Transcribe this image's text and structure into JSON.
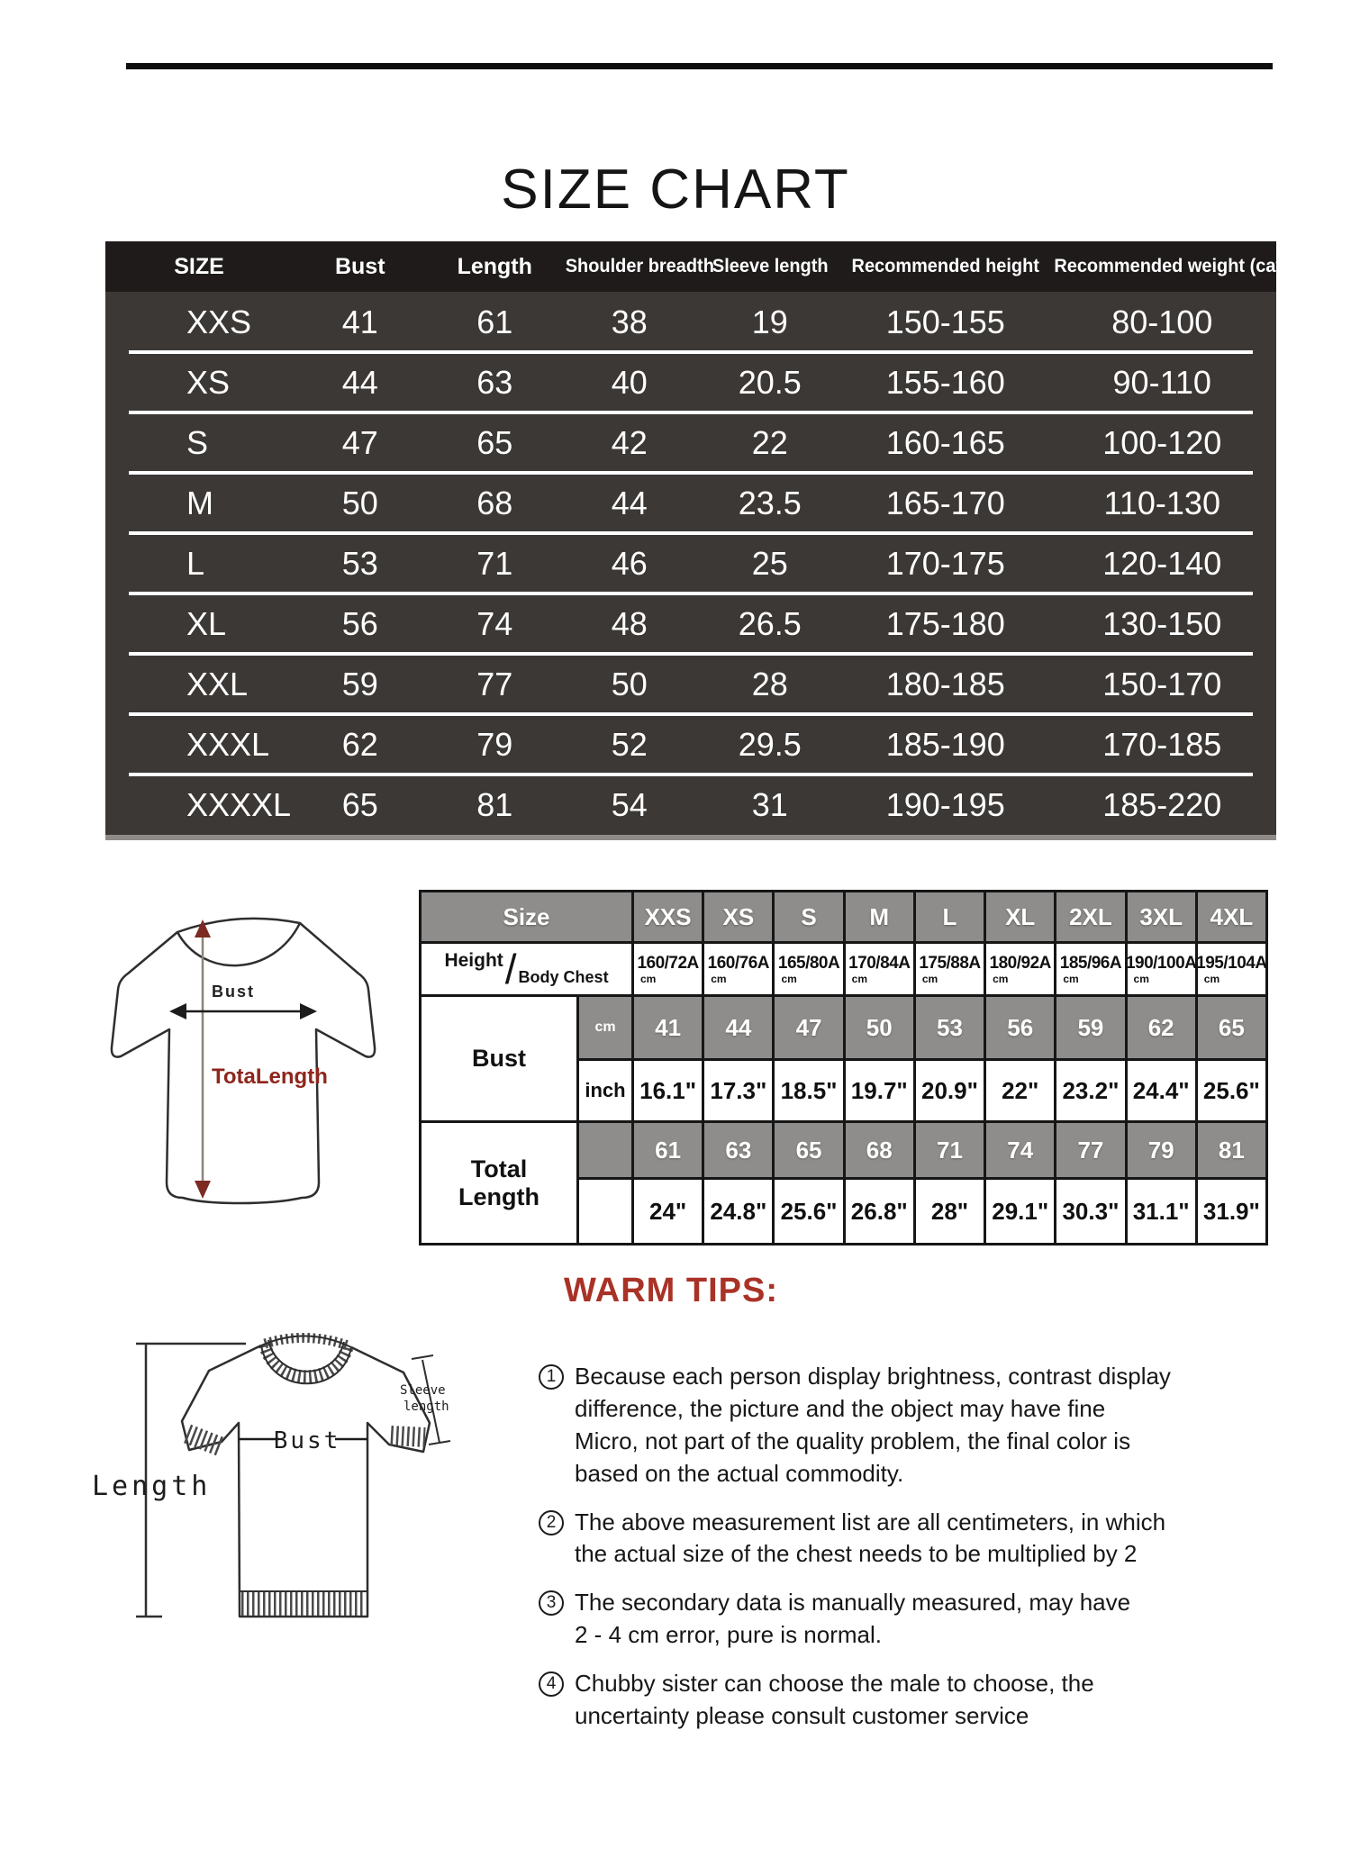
{
  "page": {
    "title": "SIZE CHART"
  },
  "colors": {
    "accent_red": "#a93227",
    "diagram_red": "#8e261d",
    "dark_table_bg": "#3c3835",
    "dark_table_header_bg": "#1e1b1a",
    "gray_cell": "#8e8d8b"
  },
  "main_table": {
    "headers": [
      "SIZE",
      "Bust",
      "Length",
      "Shoulder breadth",
      "Sleeve length",
      "Recommended height",
      "Recommended weight (catty)"
    ],
    "rows": [
      [
        "XXS",
        "41",
        "61",
        "38",
        "19",
        "150-155",
        "80-100"
      ],
      [
        "XS",
        "44",
        "63",
        "40",
        "20.5",
        "155-160",
        "90-110"
      ],
      [
        "S",
        "47",
        "65",
        "42",
        "22",
        "160-165",
        "100-120"
      ],
      [
        "M",
        "50",
        "68",
        "44",
        "23.5",
        "165-170",
        "110-130"
      ],
      [
        "L",
        "53",
        "71",
        "46",
        "25",
        "170-175",
        "120-140"
      ],
      [
        "XL",
        "56",
        "74",
        "48",
        "26.5",
        "175-180",
        "130-150"
      ],
      [
        "XXL",
        "59",
        "77",
        "50",
        "28",
        "180-185",
        "150-170"
      ],
      [
        "XXXL",
        "62",
        "79",
        "52",
        "29.5",
        "185-190",
        "170-185"
      ],
      [
        "XXXXL",
        "65",
        "81",
        "54",
        "31",
        "190-195",
        "185-220"
      ]
    ]
  },
  "detail_table": {
    "corner_label": "Size",
    "sizes": [
      "XXS",
      "XS",
      "S",
      "M",
      "L",
      "XL",
      "2XL",
      "3XL",
      "4XL"
    ],
    "height_label": "Height",
    "slash": "/",
    "body_chest_label": "Body Chest",
    "height_chest": [
      "160/72A",
      "160/76A",
      "165/80A",
      "170/84A",
      "175/88A",
      "180/92A",
      "185/96A",
      "190/100A",
      "195/104A"
    ],
    "unit_cm": "cm",
    "unit_inch": "inch",
    "bust_label": "Bust",
    "bust_cm": [
      "41",
      "44",
      "47",
      "50",
      "53",
      "56",
      "59",
      "62",
      "65"
    ],
    "bust_inch": [
      "16.1\"",
      "17.3\"",
      "18.5\"",
      "19.7\"",
      "20.9\"",
      "22\"",
      "23.2\"",
      "24.4\"",
      "25.6\""
    ],
    "total_length_label": "Total Length",
    "length_cm": [
      "61",
      "63",
      "65",
      "68",
      "71",
      "74",
      "77",
      "79",
      "81"
    ],
    "length_inch": [
      "24\"",
      "24.8\"",
      "25.6\"",
      "26.8\"",
      "28\"",
      "29.1\"",
      "30.3\"",
      "31.1\"",
      "31.9\""
    ]
  },
  "diagram_front": {
    "bust_label": "Bust",
    "length_label": "TotaLength"
  },
  "diagram_flat": {
    "length_label": "Length",
    "bust_label": "Bust",
    "sleeve_label_line1": "Sleeve",
    "sleeve_label_line2": "length"
  },
  "warm_tips": {
    "heading": "WARM TIPS:",
    "items": [
      {
        "num": "1",
        "text": "Because each person display brightness, contrast display\ndifference, the picture and the object may have fine\nMicro, not part of the quality problem, the final color is\nbased on the actual commodity."
      },
      {
        "num": "2",
        "text": "The above measurement list are all centimeters, in which\nthe actual size of the chest needs to be multiplied by 2"
      },
      {
        "num": "3",
        "text": "The secondary data is manually measured, may have\n2 - 4 cm error, pure is normal."
      },
      {
        "num": "4",
        "text": "Chubby sister can choose the male to choose, the\nuncertainty please consult customer service"
      }
    ]
  }
}
